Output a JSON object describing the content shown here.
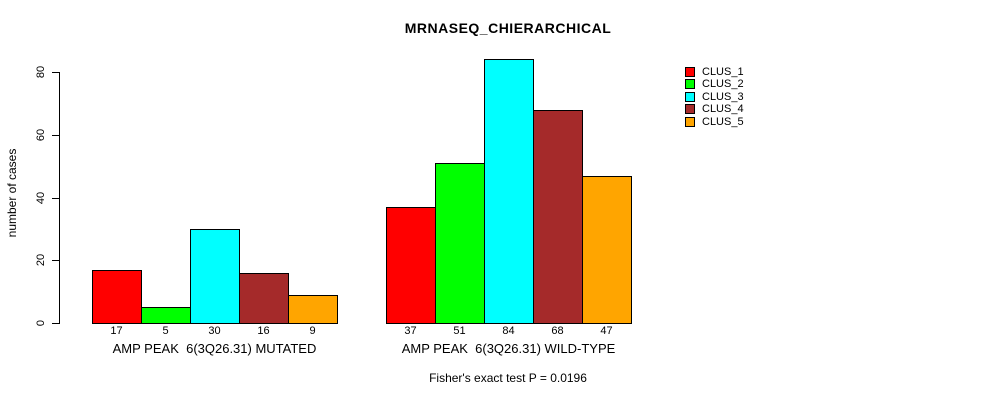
{
  "chart_data": {
    "type": "bar",
    "title": "MRNASEQ_CHIERARCHICAL",
    "ylabel": "number of cases",
    "xlabel": "",
    "ylim": [
      0,
      80
    ],
    "yticks": [
      0,
      20,
      40,
      60,
      80
    ],
    "grid": false,
    "legend_position": "top-right",
    "categories": [
      "AMP PEAK  6(3Q26.31) MUTATED",
      "AMP PEAK  6(3Q26.31) WILD-TYPE"
    ],
    "series": [
      {
        "name": "CLUS_1",
        "color": "#FF0000",
        "values": [
          17,
          37
        ]
      },
      {
        "name": "CLUS_2",
        "color": "#00FF00",
        "values": [
          5,
          51
        ]
      },
      {
        "name": "CLUS_3",
        "color": "#00FFFF",
        "values": [
          30,
          84
        ]
      },
      {
        "name": "CLUS_4",
        "color": "#A52A2A",
        "values": [
          16,
          68
        ]
      },
      {
        "name": "CLUS_5",
        "color": "#FFA500",
        "values": [
          9,
          47
        ]
      }
    ],
    "groups": [
      {
        "label": "AMP PEAK  6(3Q26.31) MUTATED",
        "values": [
          17,
          5,
          30,
          16,
          9
        ]
      },
      {
        "label": "AMP PEAK  6(3Q26.31) WILD-TYPE",
        "values": [
          37,
          51,
          84,
          68,
          47
        ]
      }
    ],
    "bar_value_labels": [
      "17",
      "5",
      "30",
      "16",
      "9",
      "37",
      "51",
      "84",
      "68",
      "47"
    ],
    "annotation": "Fisher's exact test P = 0.0196"
  },
  "legend": {
    "entries": [
      {
        "label": "CLUS_1",
        "color": "#FF0000"
      },
      {
        "label": "CLUS_2",
        "color": "#00FF00"
      },
      {
        "label": "CLUS_3",
        "color": "#00FFFF"
      },
      {
        "label": "CLUS_4",
        "color": "#A52A2A"
      },
      {
        "label": "CLUS_5",
        "color": "#FFA500"
      }
    ]
  },
  "colors": {
    "background": "#FFFFFF",
    "axis": "#000000",
    "text": "#000000"
  }
}
